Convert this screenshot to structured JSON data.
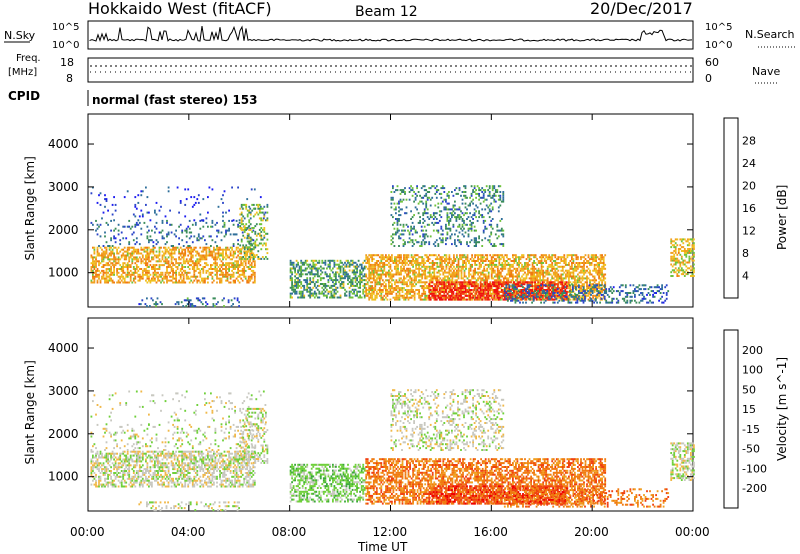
{
  "header": {
    "title": "Hokkaido West (fitACF)",
    "beam": "Beam 12",
    "date": "20/Dec/2017"
  },
  "strip_panel": {
    "nsky_label": "N.Sky",
    "nsearch_label": "N.Search",
    "noise_left_ticks": [
      "10^5",
      "10^0"
    ],
    "noise_right_ticks": [
      "10^5",
      "10^0"
    ],
    "freq_label_top": "Freq.",
    "freq_label_bottom": "[MHz]",
    "freq_ticks": [
      "18",
      "8"
    ],
    "nave_label": "Nave",
    "nave_ticks": [
      "60",
      "0"
    ],
    "cpid_label": "CPID",
    "cpid_text": "normal (fast stereo) 153"
  },
  "colors": {
    "power_scale": [
      "#1c1cf0",
      "#2a44c8",
      "#2f6f9a",
      "#3a8c5a",
      "#6fc23a",
      "#f0c020",
      "#f0a020",
      "#f07a10",
      "#f04a10",
      "#f01010"
    ],
    "velocity_scale": [
      "#f00000",
      "#f04010",
      "#f07a10",
      "#f0a020",
      "#f0b848",
      "#c8c8c0",
      "#6fd03a",
      "#3aa83a",
      "#2a6a7a",
      "#1c30c8"
    ]
  },
  "chart_data": [
    {
      "type": "heatmap",
      "title": "",
      "ylabel": "Slant Range [km]",
      "xlabel": "",
      "x_ticks": [
        "00:00",
        "04:00",
        "08:00",
        "12:00",
        "16:00",
        "20:00",
        "00:00"
      ],
      "y_ticks": [
        "1000",
        "2000",
        "3000",
        "4000"
      ],
      "ylim": [
        200,
        4700
      ],
      "xlim_hours": [
        0,
        24
      ],
      "colorbar_label": "Power [dB]",
      "colorbar_ticks": [
        "4",
        "8",
        "12",
        "16",
        "20",
        "24",
        "28"
      ],
      "colorbar_range": [
        0,
        32
      ]
    },
    {
      "type": "heatmap",
      "title": "",
      "ylabel": "Slant Range [km]",
      "xlabel": "Time UT",
      "x_ticks": [
        "00:00",
        "04:00",
        "08:00",
        "12:00",
        "16:00",
        "20:00",
        "00:00"
      ],
      "y_ticks": [
        "1000",
        "2000",
        "3000",
        "4000"
      ],
      "ylim": [
        200,
        4700
      ],
      "xlim_hours": [
        0,
        24
      ],
      "colorbar_label": "Velocity [m s^-1]",
      "colorbar_ticks": [
        "-200",
        "-100",
        "-50",
        "-15",
        "15",
        "50",
        "100",
        "200"
      ],
      "colorbar_range": [
        -250,
        250
      ]
    }
  ]
}
